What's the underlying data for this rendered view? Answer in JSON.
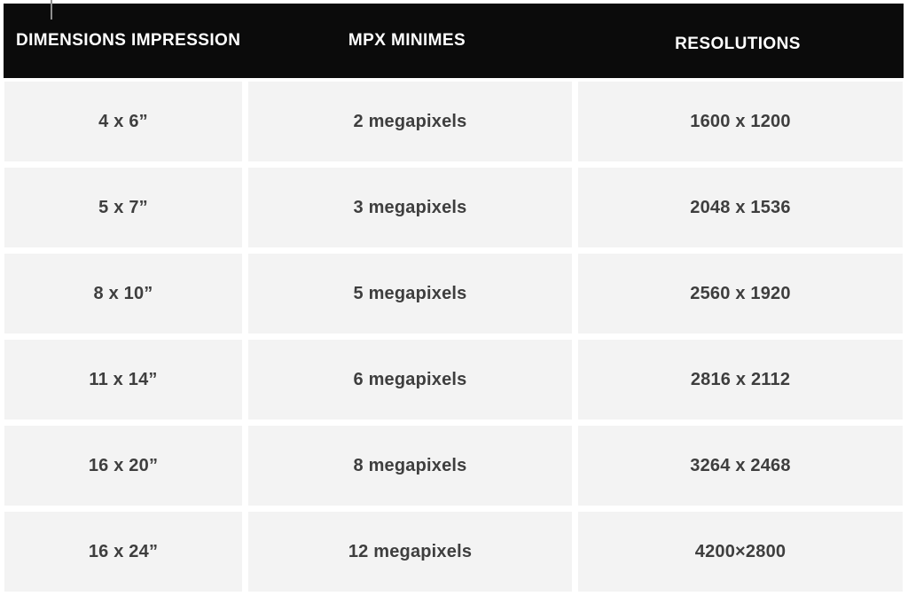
{
  "colors": {
    "header-bg": "#0b0b0b",
    "header-text": "#ffffff",
    "cell-bg": "#f3f3f3",
    "cell-text": "#3e3e3e",
    "cursor": "#8f8f8f"
  },
  "table": {
    "columns": [
      "DIMENSIONS IMPRESSION",
      "MPX MINIMES",
      "RESOLUTIONS"
    ],
    "rows": [
      {
        "dimension": "4 x 6”",
        "mpx": "2 megapixels",
        "resolution": "1600 x 1200"
      },
      {
        "dimension": "5 x 7”",
        "mpx": "3 megapixels",
        "resolution": "2048 x 1536"
      },
      {
        "dimension": "8 x 10”",
        "mpx": "5 megapixels",
        "resolution": "2560 x 1920"
      },
      {
        "dimension": "11 x 14”",
        "mpx": "6 megapixels",
        "resolution": "2816 x 2112"
      },
      {
        "dimension": "16 x 20”",
        "mpx": "8 megapixels",
        "resolution": "3264 x 2468"
      },
      {
        "dimension": "16 x 24”",
        "mpx": "12 megapixels",
        "resolution": "4200×2800"
      }
    ]
  }
}
